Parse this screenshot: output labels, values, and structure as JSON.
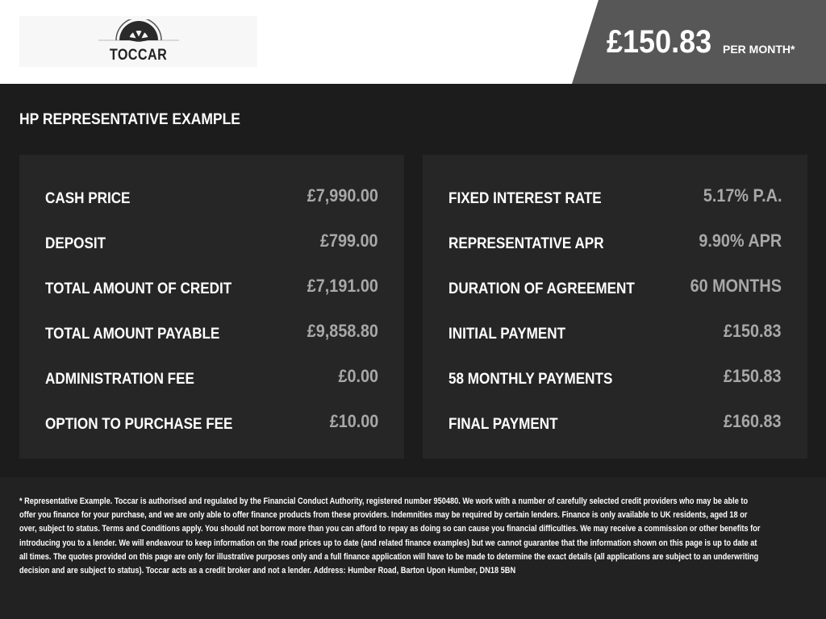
{
  "header": {
    "logo_text": "TOCCAR",
    "monthly_price": "£150.83",
    "per_month_label": "PER MONTH*"
  },
  "section_title": "HP REPRESENTATIVE EXAMPLE",
  "left_items": [
    {
      "label": "CASH PRICE",
      "value": "£7,990.00"
    },
    {
      "label": "DEPOSIT",
      "value": "£799.00"
    },
    {
      "label": "TOTAL AMOUNT OF CREDIT",
      "value": "£7,191.00"
    },
    {
      "label": "TOTAL AMOUNT PAYABLE",
      "value": "£9,858.80"
    },
    {
      "label": "ADMINISTRATION FEE",
      "value": "£0.00"
    },
    {
      "label": "OPTION TO PURCHASE FEE",
      "value": "£10.00"
    }
  ],
  "right_items": [
    {
      "label": "FIXED INTEREST RATE",
      "value": "5.17% P.A."
    },
    {
      "label": "REPRESENTATIVE APR",
      "value": "9.90% APR"
    },
    {
      "label": "DURATION OF AGREEMENT",
      "value": "60 MONTHS"
    },
    {
      "label": "INITIAL PAYMENT",
      "value": "£150.83"
    },
    {
      "label": "58 MONTHLY PAYMENTS",
      "value": "£150.83"
    },
    {
      "label": "FINAL PAYMENT",
      "value": "£160.83"
    }
  ],
  "disclaimer": "* Representative Example. Toccar is authorised and regulated by the Financial Conduct Authority, registered number 950480. We work with a number of carefully selected credit providers who may be able to offer you finance for your purchase, and we are only able to offer finance products from these providers. Indemnities may be required by certain lenders. Finance is only available to UK residents, aged 18 or over, subject to status. Terms and Conditions apply. You should not borrow more than you can afford to repay as doing so can cause you financial difficulties. We may receive a commission or other benefits for introducing you to a lender. We will endeavour to keep information on the road prices up to date (and related finance examples) but we cannot guarantee that the information shown on this page is up to date at all times. The quotes provided on this page are only for illustrative purposes only and a full finance application will have to be made to determine the exact details (all applications are subject to an underwriting decision and are subject to status). Toccar acts as a credit broker and not a lender. Address: Humber Road, Barton Upon Humber, DN18 5BN"
}
